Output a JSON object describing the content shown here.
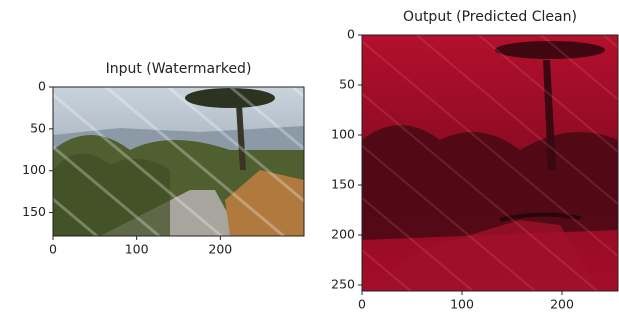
{
  "chart_data": [
    {
      "type": "image",
      "title": "Input (Watermarked)",
      "xlim": [
        0,
        300
      ],
      "ylim": [
        178,
        0
      ],
      "xticks": [
        0,
        100,
        200
      ],
      "yticks": [
        0,
        50,
        100,
        150
      ]
    },
    {
      "type": "image",
      "title": "Output (Predicted Clean)",
      "xlim": [
        0,
        256
      ],
      "ylim": [
        256,
        0
      ],
      "xticks": [
        0,
        100,
        200
      ],
      "yticks": [
        0,
        50,
        100,
        150,
        200,
        250
      ]
    }
  ]
}
